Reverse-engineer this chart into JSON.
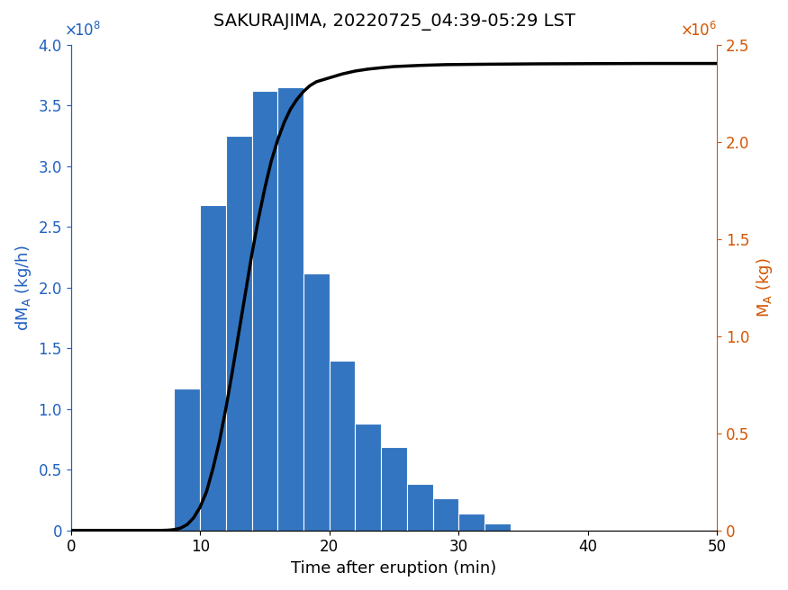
{
  "title": "SAKURAJIMA, 20220725_04:39-05:29 LST",
  "xlabel": "Time after eruption (min)",
  "ylabel_left": "dM_A (kg/h)",
  "ylabel_right": "M_A (kg)",
  "bar_color": "#3375c0",
  "line_color": "#000000",
  "left_axis_color": "#2060c0",
  "right_axis_color": "#d45500",
  "xlim": [
    0,
    50
  ],
  "ylim_left": [
    0,
    400000000.0
  ],
  "ylim_right": [
    0,
    2500000.0
  ],
  "bar_centers": [
    9,
    11,
    13,
    15,
    17,
    19,
    21,
    23,
    25,
    27,
    29,
    31,
    33
  ],
  "bar_heights": [
    117000000.0,
    268000000.0,
    325000000.0,
    362000000.0,
    365000000.0,
    212000000.0,
    140000000.0,
    88000000.0,
    69000000.0,
    38000000.0,
    26500000.0,
    14000000.0,
    5500000.0
  ],
  "bar_width": 2.0,
  "cumulative_x": [
    0,
    6,
    7,
    7.5,
    8,
    8.5,
    9,
    9.5,
    10,
    10.5,
    11,
    11.5,
    12,
    12.5,
    13,
    13.5,
    14,
    14.5,
    15,
    15.5,
    16,
    16.5,
    17,
    17.5,
    18,
    18.5,
    19,
    20,
    21,
    22,
    23,
    24,
    25,
    27,
    29,
    32,
    36,
    40,
    45,
    50
  ],
  "cumulative_y": [
    0,
    0,
    0,
    1000.0,
    4000.0,
    12000.0,
    30000.0,
    65000.0,
    120000.0,
    200000.0,
    320000.0,
    460000.0,
    630000.0,
    820000.0,
    1020000.0,
    1220000.0,
    1420000.0,
    1600000.0,
    1760000.0,
    1900000.0,
    2010000.0,
    2100000.0,
    2170000.0,
    2220000.0,
    2260000.0,
    2290000.0,
    2310000.0,
    2330000.0,
    2350000.0,
    2365000.0,
    2375000.0,
    2382000.0,
    2388000.0,
    2394000.0,
    2398000.0,
    2400000.0,
    2402000.0,
    2403000.0,
    2404000.0,
    2404000.0
  ],
  "xticks": [
    0,
    10,
    20,
    30,
    40,
    50
  ],
  "yticks_left": [
    0,
    50000000.0,
    100000000.0,
    150000000.0,
    200000000.0,
    250000000.0,
    300000000.0,
    350000000.0,
    400000000.0
  ],
  "yticks_right": [
    0,
    500000.0,
    1000000.0,
    1500000.0,
    2000000.0,
    2500000.0
  ],
  "title_fontsize": 14,
  "label_fontsize": 13,
  "tick_fontsize": 12
}
